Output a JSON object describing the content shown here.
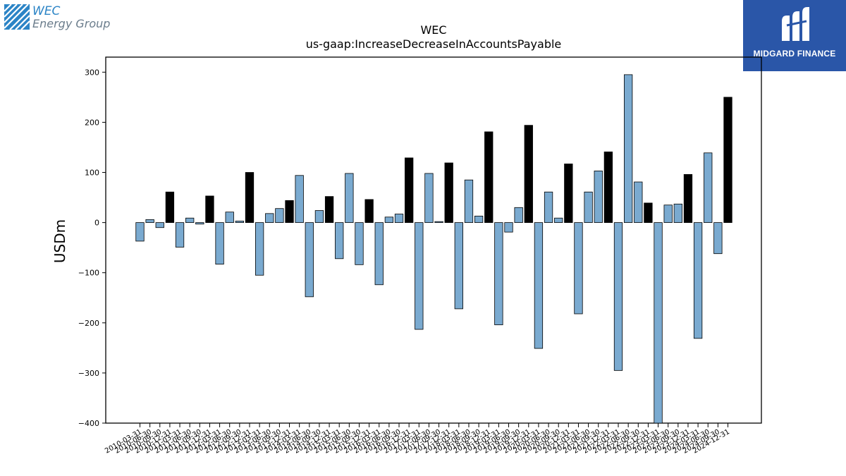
{
  "logos": {
    "left": {
      "line1": "WEC",
      "line2": "Energy Group",
      "icon": "wec-stripes-icon"
    },
    "right": {
      "name": "MIDGARD FINANCE",
      "icon": "midgard-m-icon",
      "background": "#2a56a8"
    }
  },
  "chart_data": {
    "type": "bar",
    "title": "WEC",
    "subtitle": "us-gaap:IncreaseDecreaseInAccountsPayable",
    "ylabel": "USDm",
    "xlabel": "",
    "ylim": [
      -400,
      330
    ],
    "yticks": [
      -400,
      -300,
      -200,
      -100,
      0,
      100,
      200,
      300
    ],
    "grid": false,
    "colors": {
      "quarterly": "#7aaad0",
      "annual": "#000000",
      "edge": "#000000"
    },
    "categories": [
      "2010-03-31",
      "2010-06-30",
      "2010-09-30",
      "2010-12-31",
      "2011-03-31",
      "2011-06-30",
      "2011-09-30",
      "2011-12-31",
      "2012-03-31",
      "2012-06-30",
      "2012-09-30",
      "2012-12-31",
      "2013-03-31",
      "2013-06-30",
      "2013-09-30",
      "2013-12-31",
      "2014-03-31",
      "2014-06-30",
      "2014-09-30",
      "2014-12-31",
      "2015-03-31",
      "2015-06-30",
      "2015-09-30",
      "2015-12-31",
      "2016-03-31",
      "2016-06-30",
      "2016-09-30",
      "2016-12-31",
      "2017-03-31",
      "2017-06-30",
      "2017-09-30",
      "2017-12-31",
      "2018-03-31",
      "2018-06-30",
      "2018-09-30",
      "2018-12-31",
      "2019-03-31",
      "2019-06-30",
      "2019-09-30",
      "2019-12-31",
      "2020-03-31",
      "2020-06-30",
      "2020-09-30",
      "2020-12-31",
      "2021-03-31",
      "2021-06-30",
      "2021-09-30",
      "2021-12-31",
      "2022-03-31",
      "2022-06-30",
      "2022-09-30",
      "2022-12-31",
      "2023-03-31",
      "2023-06-30",
      "2023-09-30",
      "2023-12-31",
      "2024-03-31",
      "2024-06-30",
      "2024-09-30",
      "2024-12-31"
    ],
    "values": [
      -37,
      6,
      -10,
      61,
      -49,
      9,
      -3,
      53,
      -83,
      21,
      3,
      100,
      -105,
      18,
      28,
      44,
      94,
      -148,
      24,
      52,
      -72,
      98,
      -84,
      46,
      -124,
      11,
      17,
      129,
      -213,
      98,
      2,
      119,
      -172,
      85,
      13,
      181,
      -204,
      -19,
      30,
      194,
      -251,
      61,
      9,
      117,
      -182,
      61,
      103,
      141,
      -295,
      295,
      81,
      39,
      -405,
      35,
      37,
      96,
      -231,
      139,
      -62,
      250
    ],
    "annual": [
      false,
      false,
      false,
      true,
      false,
      false,
      false,
      true,
      false,
      false,
      false,
      true,
      false,
      false,
      false,
      true,
      false,
      false,
      false,
      true,
      false,
      false,
      false,
      true,
      false,
      false,
      false,
      true,
      false,
      false,
      false,
      true,
      false,
      false,
      false,
      true,
      false,
      false,
      false,
      true,
      false,
      false,
      false,
      true,
      false,
      false,
      false,
      true,
      false,
      false,
      false,
      true,
      false,
      false,
      false,
      true,
      false,
      false,
      false,
      true
    ]
  }
}
